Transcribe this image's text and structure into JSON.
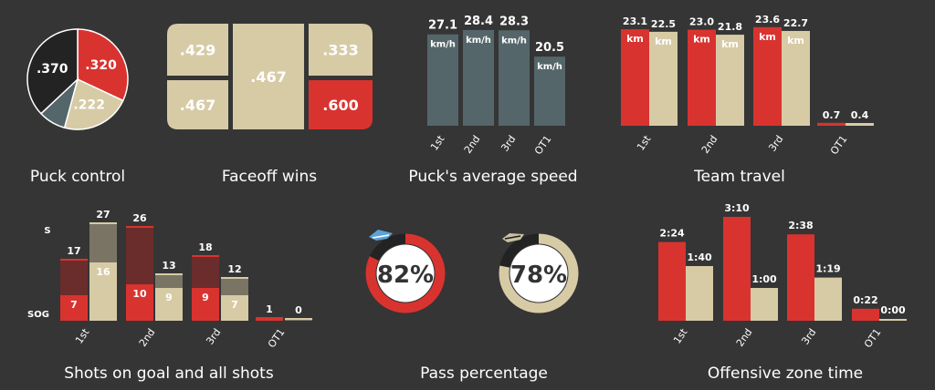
{
  "colors": {
    "background": "#353535",
    "red": "#d93330",
    "tan": "#d7cba6",
    "slate": "#55666a",
    "dark": "#232323",
    "dark_red": "#6a2d2c",
    "dark_tan": "#7a7465",
    "text": "#ffffff"
  },
  "captions": {
    "puck_control": "Puck control",
    "faceoff_wins": "Faceoff wins",
    "puck_speed": "Puck's average speed",
    "team_travel": "Team travel",
    "shots": "Shots on goal and all shots",
    "pass_pct": "Pass percentage",
    "oz_time": "Offensive zone time"
  },
  "chart_data": [
    {
      "id": "puck_control",
      "type": "pie",
      "title": "Puck control",
      "slices": [
        {
          "label": ".320",
          "value": 0.32,
          "color": "red"
        },
        {
          "label": ".222",
          "value": 0.222,
          "color": "tan"
        },
        {
          "label": "",
          "value": 0.088,
          "color": "slate"
        },
        {
          "label": ".370",
          "value": 0.37,
          "color": "dark"
        }
      ]
    },
    {
      "id": "faceoff_wins",
      "type": "table",
      "title": "Faceoff wins",
      "cells": [
        {
          "label": ".429",
          "value": 0.429,
          "color": "tan"
        },
        {
          "label": ".467",
          "value": 0.467,
          "color": "tan"
        },
        {
          "label": ".467",
          "value": 0.467,
          "color": "tan"
        },
        {
          "label": ".333",
          "value": 0.333,
          "color": "tan"
        },
        {
          "label": ".600",
          "value": 0.6,
          "color": "red"
        }
      ]
    },
    {
      "id": "puck_speed",
      "type": "bar",
      "title": "Puck's average speed",
      "categories": [
        "1st",
        "2nd",
        "3rd",
        "OT1"
      ],
      "unit": "km/h",
      "values": [
        27.1,
        28.4,
        28.3,
        20.5
      ],
      "labels": [
        "27.1",
        "28.4",
        "28.3",
        "20.5"
      ],
      "ylim": [
        0,
        30
      ]
    },
    {
      "id": "team_travel",
      "type": "bar",
      "title": "Team travel",
      "categories": [
        "1st",
        "2nd",
        "3rd",
        "OT1"
      ],
      "unit": "km",
      "series": [
        {
          "values": [
            23.1,
            23.0,
            23.6,
            0.7
          ],
          "labels": [
            "23.1",
            "23.0",
            "23.6",
            "0.7"
          ],
          "color": "red"
        },
        {
          "values": [
            22.5,
            21.8,
            22.7,
            0.4
          ],
          "labels": [
            "22.5",
            "21.8",
            "22.7",
            "0.4"
          ],
          "color": "tan"
        }
      ],
      "ylim": [
        0,
        24
      ]
    },
    {
      "id": "shots",
      "type": "bar",
      "title": "Shots on goal and all shots",
      "categories": [
        "1st",
        "2nd",
        "3rd",
        "OT1"
      ],
      "row_labels": {
        "shots": "S",
        "sog": "SOG"
      },
      "series": [
        {
          "shots": [
            17,
            26,
            18,
            1
          ],
          "sog": [
            7,
            10,
            9,
            1
          ],
          "shot_labels": [
            "17",
            "26",
            "18",
            "1"
          ],
          "sog_labels": [
            "7",
            "10",
            "9",
            ""
          ],
          "color": "red"
        },
        {
          "shots": [
            27,
            13,
            12,
            0
          ],
          "sog": [
            16,
            9,
            7,
            0
          ],
          "shot_labels": [
            "27",
            "13",
            "12",
            "0"
          ],
          "sog_labels": [
            "16",
            "9",
            "7",
            ""
          ],
          "color": "tan"
        }
      ],
      "ylim": [
        0,
        28
      ]
    },
    {
      "id": "pass_pct",
      "type": "pie",
      "title": "Pass percentage",
      "rings": [
        {
          "value": 0.82,
          "label": "82%",
          "color": "red"
        },
        {
          "value": 0.78,
          "label": "78%",
          "color": "tan"
        }
      ]
    },
    {
      "id": "oz_time",
      "type": "bar",
      "title": "Offensive zone time",
      "categories": [
        "1st",
        "2nd",
        "3rd",
        "OT1"
      ],
      "series": [
        {
          "values": [
            144,
            190,
            158,
            22
          ],
          "labels": [
            "2:24",
            "3:10",
            "2:38",
            "0:22"
          ],
          "color": "red"
        },
        {
          "values": [
            100,
            60,
            79,
            0
          ],
          "labels": [
            "1:40",
            "1:00",
            "1:19",
            "0:00"
          ],
          "color": "tan"
        }
      ],
      "ylim": [
        0,
        190
      ]
    }
  ]
}
